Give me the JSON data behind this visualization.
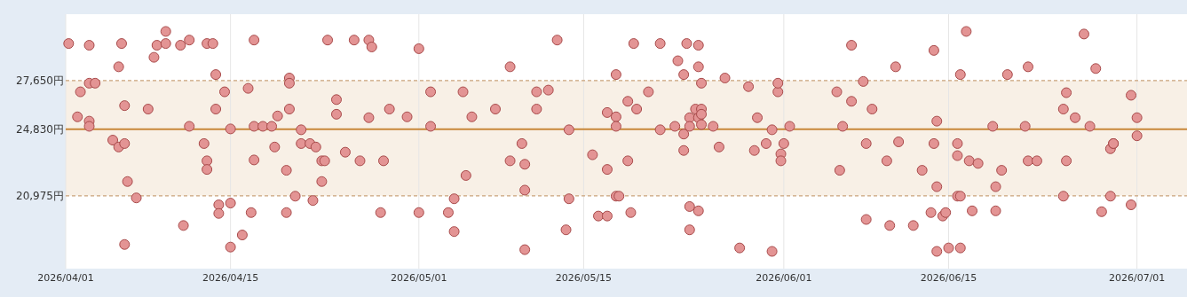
{
  "chart_data": {
    "type": "scatter",
    "marker": "circle",
    "color": "#e39494",
    "grid": "x",
    "xlim": [
      "2026-04-01T00:00",
      "2026-07-05T06:00"
    ],
    "ylim": [
      16750,
      31500
    ],
    "xticks": [
      {
        "value": "2026-04-01T00:00",
        "label": "2026/04/01"
      },
      {
        "value": "2026-04-15T00:00",
        "label": "2026/04/15"
      },
      {
        "value": "2026-05-01T00:00",
        "label": "2026/05/01"
      },
      {
        "value": "2026-05-15T00:00",
        "label": "2026/05/15"
      },
      {
        "value": "2026-06-01T00:00",
        "label": "2026/06/01"
      },
      {
        "value": "2026-06-15T00:00",
        "label": "2026/06/15"
      },
      {
        "value": "2026-07-01T00:00",
        "label": "2026/07/01"
      }
    ],
    "yticks": [
      {
        "value": 20975,
        "label": "20,975円"
      },
      {
        "value": 24830,
        "label": "24,830円"
      },
      {
        "value": 27650,
        "label": "27,650円"
      }
    ],
    "bands": [
      {
        "axis": "y",
        "from": 20975,
        "to": 27650,
        "color": "#f8f0e6"
      }
    ],
    "ref_lines": [
      {
        "axis": "y",
        "value": 24830,
        "color": "#c8873a",
        "line_style": "solid"
      },
      {
        "axis": "y",
        "value": 27650,
        "color": "#c9a27a",
        "line_style": "dashed"
      },
      {
        "axis": "y",
        "value": 20975,
        "color": "#c9a27a",
        "line_style": "dashed"
      }
    ],
    "x": [
      "2026-04-01T06:00",
      "2026-04-02T06:00",
      "2026-04-02T00:00",
      "2026-04-03T00:00",
      "2026-04-03T00:00",
      "2026-04-03T12:00",
      "2026-04-03T00:00",
      "2026-04-03T00:00",
      "2026-04-05T00:00",
      "2026-04-05T12:00",
      "2026-04-05T12:00",
      "2026-04-05T18:00",
      "2026-04-06T00:00",
      "2026-04-06T00:00",
      "2026-04-06T00:00",
      "2026-04-06T06:00",
      "2026-04-07T00:00",
      "2026-04-08T00:00",
      "2026-04-08T12:00",
      "2026-04-08T18:00",
      "2026-04-09T12:00",
      "2026-04-09T12:00",
      "2026-04-10T18:00",
      "2026-04-11T00:00",
      "2026-04-11T12:00",
      "2026-04-11T12:00",
      "2026-04-12T18:00",
      "2026-04-13T00:00",
      "2026-04-13T00:00",
      "2026-04-13T00:00",
      "2026-04-13T12:00",
      "2026-04-13T18:00",
      "2026-04-13T18:00",
      "2026-04-14T00:00",
      "2026-04-14T00:00",
      "2026-04-14T12:00",
      "2026-04-15T00:00",
      "2026-04-15T00:00",
      "2026-04-15T00:00",
      "2026-04-16T00:00",
      "2026-04-16T12:00",
      "2026-04-16T18:00",
      "2026-04-17T00:00",
      "2026-04-17T00:00",
      "2026-04-17T00:00",
      "2026-04-17T18:00",
      "2026-04-18T12:00",
      "2026-04-18T18:00",
      "2026-04-19T00:00",
      "2026-04-19T18:00",
      "2026-04-19T18:00",
      "2026-04-20T00:00",
      "2026-04-20T00:00",
      "2026-04-20T00:00",
      "2026-04-20T12:00",
      "2026-04-21T00:00",
      "2026-04-21T00:00",
      "2026-04-21T18:00",
      "2026-04-22T00:00",
      "2026-04-22T06:00",
      "2026-04-22T18:00",
      "2026-04-22T18:00",
      "2026-04-23T00:00",
      "2026-04-23T06:00",
      "2026-04-24T00:00",
      "2026-04-24T00:00",
      "2026-04-24T18:00",
      "2026-04-25T12:00",
      "2026-04-26T00:00",
      "2026-04-26T18:00",
      "2026-04-26T18:00",
      "2026-04-27T00:00",
      "2026-04-27T18:00",
      "2026-04-28T00:00",
      "2026-04-28T12:00",
      "2026-04-30T00:00",
      "2026-05-01T00:00",
      "2026-05-01T00:00",
      "2026-05-02T00:00",
      "2026-05-02T00:00",
      "2026-05-03T12:00",
      "2026-05-04T00:00",
      "2026-05-04T00:00",
      "2026-05-04T18:00",
      "2026-05-05T00:00",
      "2026-05-05T12:00",
      "2026-05-07T12:00",
      "2026-05-08T18:00",
      "2026-05-08T18:00",
      "2026-05-09T18:00",
      "2026-05-10T00:00",
      "2026-05-10T00:00",
      "2026-05-10T00:00",
      "2026-05-11T00:00",
      "2026-05-11T00:00",
      "2026-05-12T00:00",
      "2026-05-12T18:00",
      "2026-05-13T12:00",
      "2026-05-13T18:00",
      "2026-05-13T18:00",
      "2026-05-15T18:00",
      "2026-05-16T06:00",
      "2026-05-17T00:00",
      "2026-05-17T00:00",
      "2026-05-17T00:00",
      "2026-05-17T18:00",
      "2026-05-17T18:00",
      "2026-05-17T18:00",
      "2026-05-18T00:00",
      "2026-05-17T18:00",
      "2026-05-18T18:00",
      "2026-05-18T18:00",
      "2026-05-19T00:00",
      "2026-05-19T06:00",
      "2026-05-19T12:00",
      "2026-05-20T12:00",
      "2026-05-21T12:00",
      "2026-05-21T12:00",
      "2026-05-22T18:00",
      "2026-05-23T00:00",
      "2026-05-23T12:00",
      "2026-05-23T12:00",
      "2026-05-23T12:00",
      "2026-05-23T18:00",
      "2026-05-24T00:00",
      "2026-05-24T00:00",
      "2026-05-24T00:00",
      "2026-05-24T00:00",
      "2026-05-24T12:00",
      "2026-05-24T18:00",
      "2026-05-24T18:00",
      "2026-05-24T18:00",
      "2026-05-24T18:00",
      "2026-05-25T00:00",
      "2026-05-25T00:00",
      "2026-05-25T00:00",
      "2026-05-25T00:00",
      "2026-05-26T00:00",
      "2026-05-26T12:00",
      "2026-05-27T00:00",
      "2026-05-28T06:00",
      "2026-05-29T00:00",
      "2026-05-29T12:00",
      "2026-05-29T18:00",
      "2026-05-30T12:00",
      "2026-05-31T00:00",
      "2026-05-31T00:00",
      "2026-05-31T12:00",
      "2026-05-31T12:00",
      "2026-05-31T18:00",
      "2026-05-31T18:00",
      "2026-06-01T00:00",
      "2026-06-01T12:00",
      "2026-06-05T12:00",
      "2026-06-05T18:00",
      "2026-06-06T00:00",
      "2026-06-06T18:00",
      "2026-06-06T18:00",
      "2026-06-07T18:00",
      "2026-06-08T00:00",
      "2026-06-08T00:00",
      "2026-06-08T12:00",
      "2026-06-09T18:00",
      "2026-06-10T00:00",
      "2026-06-10T12:00",
      "2026-06-10T18:00",
      "2026-06-12T00:00",
      "2026-06-12T18:00",
      "2026-06-13T12:00",
      "2026-06-13T18:00",
      "2026-06-13T18:00",
      "2026-06-14T00:00",
      "2026-06-14T00:00",
      "2026-06-14T00:00",
      "2026-06-14T12:00",
      "2026-06-14T18:00",
      "2026-06-15T00:00",
      "2026-06-15T18:00",
      "2026-06-15T18:00",
      "2026-06-15T18:00",
      "2026-06-16T00:00",
      "2026-06-16T00:00",
      "2026-06-16T00:00",
      "2026-06-16T12:00",
      "2026-06-16T18:00",
      "2026-06-17T00:00",
      "2026-06-17T12:00",
      "2026-06-18T18:00",
      "2026-06-19T00:00",
      "2026-06-19T00:00",
      "2026-06-19T12:00",
      "2026-06-20T00:00",
      "2026-06-21T12:00",
      "2026-06-21T18:00",
      "2026-06-21T18:00",
      "2026-06-22T12:00",
      "2026-06-24T18:00",
      "2026-06-24T18:00",
      "2026-06-25T00:00",
      "2026-06-25T00:00",
      "2026-06-25T18:00",
      "2026-06-26T12:00",
      "2026-06-27T00:00",
      "2026-06-27T12:00",
      "2026-06-28T00:00",
      "2026-06-28T18:00",
      "2026-06-28T18:00",
      "2026-06-29T00:00",
      "2026-06-29T00:00",
      "2026-06-30T12:00",
      "2026-06-30T12:00",
      "2026-07-01T00:00",
      "2026-07-01T00:00"
    ],
    "values": [
      29800,
      27000,
      25550,
      29700,
      27500,
      27500,
      25300,
      25000,
      24200,
      23800,
      28450,
      29800,
      26200,
      24000,
      18150,
      21800,
      20850,
      26000,
      29000,
      29700,
      29800,
      30500,
      29700,
      19250,
      30000,
      25000,
      24000,
      23000,
      22500,
      29800,
      29800,
      28000,
      26000,
      20450,
      19950,
      27000,
      24850,
      20550,
      18000,
      18700,
      27200,
      20000,
      30000,
      25000,
      23050,
      25000,
      25000,
      23800,
      25600,
      22450,
      20000,
      27800,
      27500,
      26000,
      20950,
      24800,
      24000,
      24000,
      20700,
      23800,
      23000,
      21800,
      23000,
      30000,
      25700,
      26550,
      23500,
      30000,
      23000,
      25500,
      30000,
      29600,
      20000,
      23000,
      26000,
      25550,
      20000,
      29500,
      27000,
      25000,
      20000,
      18900,
      20800,
      27000,
      22150,
      25550,
      26000,
      28450,
      23000,
      24000,
      22800,
      21300,
      17850,
      27000,
      26000,
      27100,
      30000,
      19000,
      20800,
      24800,
      23350,
      19800,
      19800,
      25800,
      22500,
      25550,
      25000,
      20950,
      20950,
      28000,
      26450,
      23000,
      20000,
      29800,
      26000,
      27000,
      29800,
      24800,
      25000,
      28800,
      24550,
      28000,
      23600,
      29800,
      25500,
      25000,
      20350,
      19000,
      26000,
      29700,
      28450,
      25500,
      20100,
      27500,
      26000,
      25700,
      25100,
      25000,
      23800,
      27800,
      17950,
      27300,
      23600,
      25500,
      24000,
      17750,
      24800,
      27000,
      27500,
      23400,
      23000,
      24000,
      25000,
      27000,
      22450,
      25000,
      29700,
      26450,
      27600,
      24000,
      19600,
      26000,
      23000,
      19250,
      28450,
      24100,
      19250,
      22450,
      20000,
      29400,
      24000,
      25300,
      17750,
      21500,
      19800,
      20000,
      17950,
      24000,
      23300,
      20950,
      20950,
      28000,
      17950,
      30500,
      23000,
      20100,
      22850,
      25000,
      21500,
      20100,
      22450,
      28000,
      25000,
      23000,
      28450,
      23000,
      20950,
      26000,
      23000,
      26950,
      25500,
      30350,
      25000,
      28350,
      20050,
      23700,
      20950,
      24000,
      24000,
      26800,
      20450,
      25500,
      24450
    ]
  }
}
